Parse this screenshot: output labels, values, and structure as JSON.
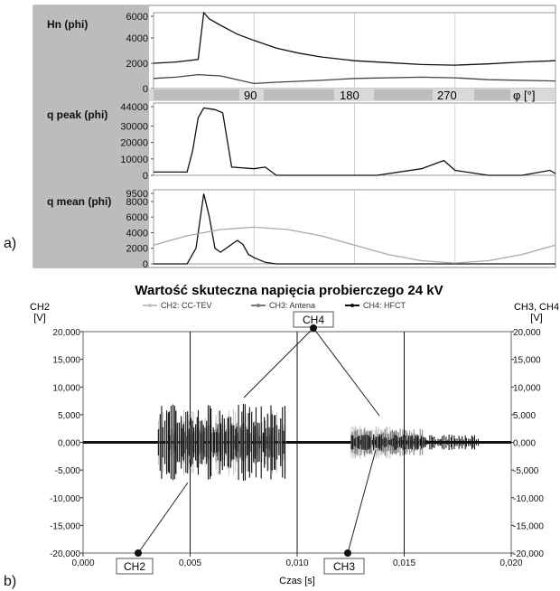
{
  "panel_a": {
    "label": "a)",
    "phase_axis": {
      "ticks": [
        "90",
        "180",
        "270"
      ],
      "label": "φ [°]"
    },
    "subplots": [
      {
        "title": "Hn (phi)",
        "yticks": [
          "6000",
          "4000",
          "2000",
          "0"
        ],
        "ylim": [
          0,
          6000
        ]
      },
      {
        "title": "q peak (phi)",
        "yticks": [
          "44000",
          "30000",
          "20000",
          "10000",
          "0"
        ],
        "ylim": [
          0,
          44000
        ]
      },
      {
        "title": "q mean (phi)",
        "yticks": [
          "9500",
          "8000",
          "6000",
          "4000",
          "2000",
          "0"
        ],
        "ylim": [
          0,
          9500
        ]
      }
    ]
  },
  "panel_b": {
    "label": "b)",
    "title": "Wartość skuteczna napięcia probierczego 24 kV",
    "left_axis_label": [
      "CH2",
      "[V]"
    ],
    "right_axis_label": [
      "CH3, CH4",
      "[V]"
    ],
    "xlabel": "Czas [s]",
    "legend": [
      "CH2: CC-TEV",
      "CH3: Antena",
      "CH4: HFCT"
    ],
    "callouts": {
      "ch4": "CH4",
      "ch2": "CH2",
      "ch3": "CH3"
    },
    "yticks": [
      "20,000",
      "15,000",
      "10,000",
      "5,000",
      "0,000",
      "-5,000",
      "-10,000",
      "-15,000",
      "-20,000"
    ],
    "xticks": [
      "0,000",
      "0,005",
      "0,010",
      "0,015",
      "0,020"
    ]
  },
  "colors": {
    "ch2": "#c4c4c4",
    "ch3": "#7a7a7a",
    "ch4": "#111111",
    "phase_band": "#bdbdbd",
    "grid": "#cfcfcf"
  },
  "chart_data": [
    {
      "type": "line",
      "title": "Hn (phi)",
      "xlabel": "φ [°]",
      "xlim": [
        0,
        360
      ],
      "ylim": [
        0,
        6000
      ],
      "series": [
        {
          "x": [
            0,
            20,
            40,
            45,
            50,
            60,
            75,
            90,
            110,
            130,
            150,
            180,
            210,
            240,
            270,
            300,
            330,
            360
          ],
          "values": [
            2000,
            2100,
            2300,
            6000,
            5500,
            5000,
            4300,
            3800,
            3200,
            2800,
            2500,
            2200,
            2050,
            1900,
            1850,
            1950,
            2100,
            2200
          ]
        },
        {
          "x": [
            0,
            20,
            40,
            60,
            80,
            90,
            110,
            150,
            180,
            240,
            270,
            300,
            360
          ],
          "values": [
            800,
            900,
            1100,
            1000,
            600,
            400,
            500,
            650,
            800,
            900,
            850,
            700,
            600
          ]
        }
      ]
    },
    {
      "type": "line",
      "title": "q peak (phi)",
      "xlabel": "φ [°]",
      "xlim": [
        0,
        360
      ],
      "ylim": [
        0,
        44000
      ],
      "series": [
        {
          "x": [
            0,
            30,
            35,
            40,
            45,
            55,
            62,
            70,
            90,
            100,
            110,
            130,
            170,
            180,
            200,
            240,
            260,
            270,
            300,
            330,
            355,
            360
          ],
          "values": [
            2000,
            2000,
            15000,
            35000,
            41000,
            40000,
            38000,
            5000,
            4000,
            5000,
            0,
            0,
            0,
            0,
            0,
            4000,
            9000,
            3000,
            0,
            0,
            3000,
            1000
          ]
        }
      ]
    },
    {
      "type": "line",
      "title": "q mean (phi)",
      "xlabel": "φ [°]",
      "xlim": [
        0,
        360
      ],
      "ylim": [
        0,
        9500
      ],
      "series": [
        {
          "x": [
            0,
            30,
            38,
            45,
            50,
            55,
            60,
            70,
            75,
            80,
            85,
            90,
            100,
            110,
            360
          ],
          "values": [
            0,
            0,
            2000,
            9000,
            6000,
            2000,
            1500,
            2500,
            3000,
            2500,
            1200,
            800,
            200,
            0,
            0
          ]
        },
        {
          "x": [
            0,
            30,
            60,
            90,
            120,
            150,
            180,
            210,
            240,
            270,
            300,
            330,
            360
          ],
          "values": [
            2400,
            3600,
            4400,
            4700,
            4400,
            3600,
            2400,
            1200,
            400,
            100,
            400,
            1200,
            2400
          ]
        }
      ]
    },
    {
      "type": "scatter",
      "title": "Wartość skuteczna napięcia probierczego 24 kV",
      "xlabel": "Czas [s]",
      "ylabel": "CH2 [V]",
      "ylabel_right": "CH3, CH4 [V]",
      "xlim": [
        0,
        0.02
      ],
      "ylim": [
        -20000,
        20000
      ],
      "series": [
        {
          "name": "CH2: CC-TEV",
          "bursts": [
            {
              "t_start": 0.0035,
              "t_end": 0.0095,
              "amplitude": 6000
            },
            {
              "t_start": 0.0125,
              "t_end": 0.0145,
              "amplitude": 3000
            }
          ]
        },
        {
          "name": "CH3: Antena",
          "bursts": [
            {
              "t_start": 0.004,
              "t_end": 0.009,
              "amplitude": 4000
            },
            {
              "t_start": 0.0125,
              "t_end": 0.016,
              "amplitude": 2500
            }
          ]
        },
        {
          "name": "CH4: HFCT",
          "bursts": [
            {
              "t_start": 0.0035,
              "t_end": 0.0095,
              "amplitude": 7000
            },
            {
              "t_start": 0.0125,
              "t_end": 0.0185,
              "amplitude": 1500
            }
          ]
        }
      ]
    }
  ]
}
